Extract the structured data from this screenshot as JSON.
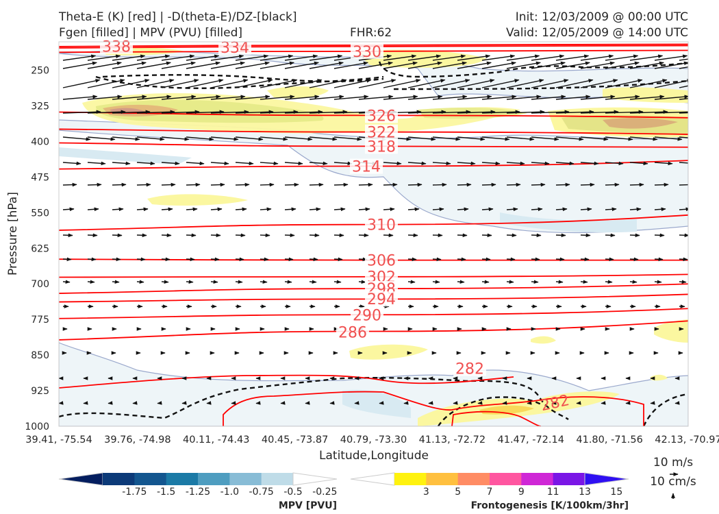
{
  "header": {
    "line1_left": "Theta-E (K) [red] | -D(theta-E)/DZ-[black]",
    "line2_left": "Fgen [filled] | MPV (PVU) [filled]",
    "fhr": "FHR:62",
    "init": "Init: 12/03/2009 @ 00:00 UTC",
    "valid": "Valid: 12/05/2009 @ 14:00 UTC"
  },
  "chart_data": {
    "type": "cross-section",
    "ylabel": "Pressure [hPa]",
    "xlabel": "Latitude,Longitude",
    "y_ticks": [
      "250",
      "325",
      "400",
      "475",
      "550",
      "625",
      "700",
      "775",
      "850",
      "925",
      "1000"
    ],
    "y_range": [
      1000,
      190
    ],
    "y_scale": "linear, inverted",
    "x_ticks": [
      "39.41, -75.54",
      "39.76, -74.98",
      "40.11, -74.43",
      "40.45, -73.87",
      "40.79, -73.30",
      "41.13, -72.72",
      "41.47, -72.14",
      "41.80, -71.56",
      "42.13, -70.97"
    ],
    "theta_e_contours": [
      {
        "label": "338",
        "p": [
          200,
          197,
          195
        ]
      },
      {
        "label": "334",
        "p": [
          203,
          200,
          198
        ]
      },
      {
        "label": "330",
        "p": [
          212,
          210,
          208
        ]
      },
      {
        "label": "326",
        "p": [
          338,
          345,
          350
        ]
      },
      {
        "label": "322",
        "p": [
          374,
          380,
          385
        ]
      },
      {
        "label": "318",
        "p": [
          403,
          410,
          412
        ]
      },
      {
        "label": "314",
        "p": [
          458,
          452,
          440
        ]
      },
      {
        "label": "310",
        "p": [
          587,
          575,
          555
        ]
      },
      {
        "label": "306",
        "p": [
          648,
          650,
          650
        ]
      },
      {
        "label": "302",
        "p": [
          686,
          685,
          680
        ]
      },
      {
        "label": "298",
        "p": [
          720,
          710,
          700
        ]
      },
      {
        "label": "294",
        "p": [
          738,
          732,
          722
        ]
      },
      {
        "label": "290",
        "p": [
          773,
          765,
          752
        ]
      },
      {
        "label": "286",
        "p": [
          818,
          800,
          778
        ]
      },
      {
        "label": "282",
        "p": [
          910,
          890,
          870
        ]
      }
    ],
    "colorbars": [
      {
        "title": "MPV [PVU]",
        "labels": [
          "-1.75",
          "-1.5",
          "-1.25",
          "-1.0",
          "-0.75",
          "-0.5",
          "-0.25"
        ],
        "colors": [
          "#041e5f",
          "#0c3a78",
          "#13568f",
          "#1b7aa6",
          "#4e9dc0",
          "#88bcd6",
          "#bfdce8",
          "#ffffff"
        ]
      },
      {
        "title": "Frontogenesis [K/100km/3hr]",
        "labels": [
          "3",
          "5",
          "7",
          "9",
          "11",
          "13",
          "15"
        ],
        "colors": [
          "#ffffff",
          "#fff20f",
          "#ffc03f",
          "#ff8c64",
          "#ff56a0",
          "#cf27d6",
          "#7a16e6",
          "#2f10f2"
        ]
      }
    ],
    "vector_keys": [
      "10 m/s",
      "10 cm/s"
    ],
    "colors": {
      "theta_e": "#ff0000",
      "theta_e_label": "#f05050",
      "vector": "#111111",
      "mpv_outline": "#9aa8cc"
    }
  }
}
